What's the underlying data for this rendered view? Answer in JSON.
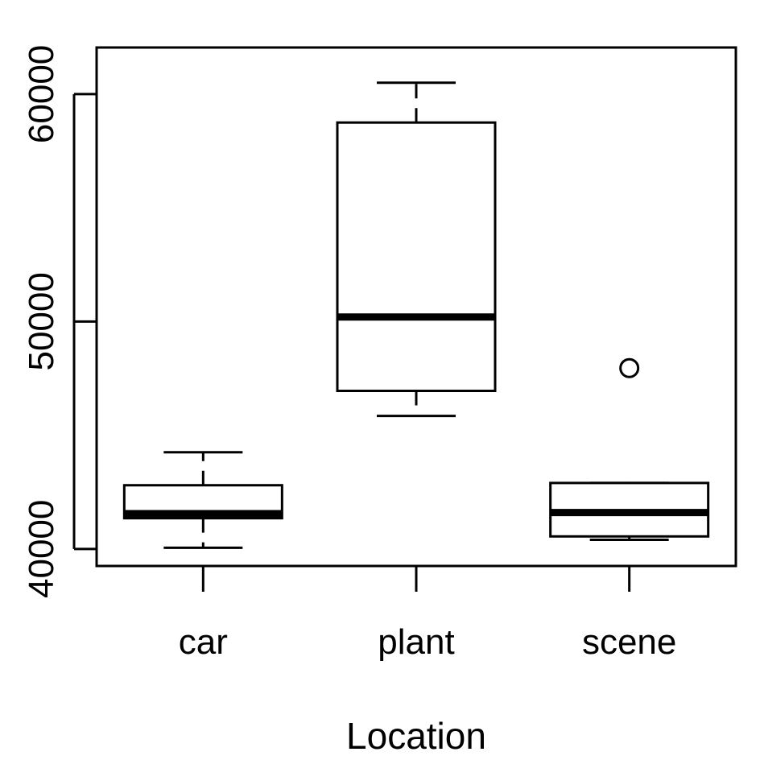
{
  "chart_data": {
    "type": "boxplot",
    "title": "",
    "xlabel": "Location",
    "ylabel": "",
    "ylim": [
      39250,
      62050
    ],
    "y_ticks": [
      40000,
      50000,
      60000
    ],
    "y_tick_labels": [
      "40000",
      "50000",
      "60000"
    ],
    "categories": [
      "car",
      "plant",
      "scene"
    ],
    "boxes": [
      {
        "category": "car",
        "whisker_low": 40050,
        "q1": 41350,
        "median": 41550,
        "q3": 42800,
        "whisker_high": 44250,
        "outliers": []
      },
      {
        "category": "plant",
        "whisker_low": 45850,
        "q1": 46950,
        "median": 50200,
        "q3": 58750,
        "whisker_high": 60500,
        "outliers": []
      },
      {
        "category": "scene",
        "whisker_low": 40400,
        "q1": 40550,
        "median": 41600,
        "q3": 42900,
        "whisker_high": 42900,
        "outliers": [
          47950
        ]
      }
    ],
    "grid": false,
    "legend": "none",
    "colors": {
      "stroke": "#000000",
      "box_fill": "#ffffff"
    }
  }
}
